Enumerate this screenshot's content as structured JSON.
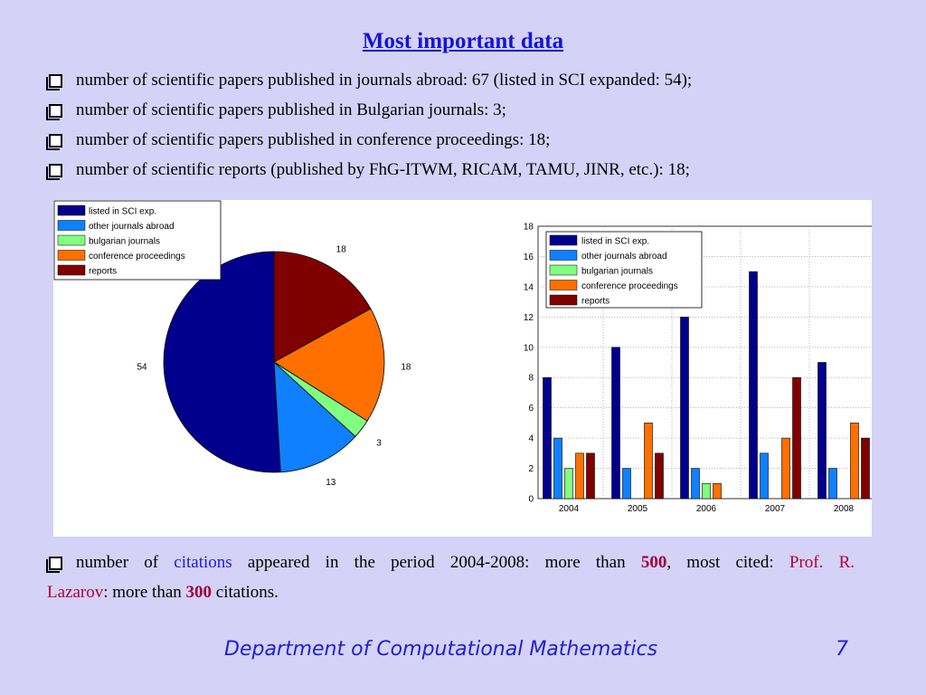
{
  "title": "Most important data",
  "bullets": [
    "number of scientific papers published in journals abroad: 67 (listed in SCI expanded: 54);",
    "number of scientific papers published in Bulgarian journals: 3;",
    "number of scientific papers published in conference proceedings: 18;",
    "number of scientific reports (published by FhG-ITWM, RICAM, TAMU, JINR, etc.): 18;"
  ],
  "citations": {
    "p1": "number of ",
    "word_citations": "citations",
    "p2": " appeared in the period 2004-2008: more than ",
    "num1": "500",
    "p3": ", most cited: ",
    "name1": "Prof. R.",
    "name2": "Lazarov",
    "p4": ": more than ",
    "num2": "300",
    "p5": " citations."
  },
  "footer": "Department of Computational Mathematics",
  "page_number": "7",
  "chart_data": [
    {
      "type": "pie",
      "labels": [
        "listed in SCI exp.",
        "other journals abroad",
        "bulgarian journals",
        "conference proceedings",
        "reports"
      ],
      "values": [
        54,
        13,
        3,
        18,
        18
      ],
      "colors": [
        "#00008c",
        "#0f80ff",
        "#80ff80",
        "#ff7000",
        "#800000"
      ],
      "legend": "top-left"
    },
    {
      "type": "bar",
      "categories": [
        "2004",
        "2005",
        "2006",
        "2007",
        "2008"
      ],
      "series": [
        {
          "name": "listed in SCI exp.",
          "values": [
            8,
            10,
            12,
            15,
            9
          ],
          "color": "#00008c"
        },
        {
          "name": "other journals abroad",
          "values": [
            4,
            2,
            2,
            3,
            2
          ],
          "color": "#0f80ff"
        },
        {
          "name": "bulgarian journals",
          "values": [
            2,
            0,
            1,
            0,
            0
          ],
          "color": "#80ff80"
        },
        {
          "name": "conference proceedings",
          "values": [
            3,
            5,
            1,
            4,
            5
          ],
          "color": "#ff7000"
        },
        {
          "name": "reports",
          "values": [
            3,
            3,
            0,
            8,
            4
          ],
          "color": "#800000"
        }
      ],
      "ylim": [
        0,
        18
      ],
      "yticks": [
        0,
        2,
        4,
        6,
        8,
        10,
        12,
        14,
        16,
        18
      ],
      "grid": true,
      "legend": "top-left"
    }
  ]
}
